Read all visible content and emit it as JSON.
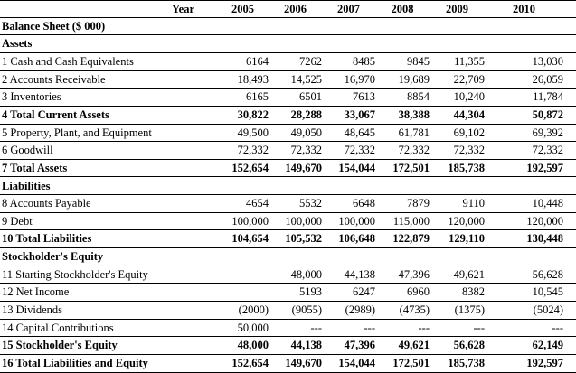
{
  "header": {
    "year_label": "Year",
    "years": [
      "2005",
      "2006",
      "2007",
      "2008",
      "2009",
      "2010"
    ]
  },
  "rows": [
    {
      "label": "Balance Sheet ($ 000)",
      "type": "title",
      "values": [
        "",
        "",
        "",
        "",
        "",
        ""
      ]
    },
    {
      "label": "Assets",
      "type": "section",
      "values": [
        "",
        "",
        "",
        "",
        "",
        ""
      ]
    },
    {
      "label": "1  Cash and Cash Equivalents",
      "type": "item",
      "values": [
        "6164",
        "7262",
        "8485",
        "9845",
        "11,355",
        "13,030"
      ]
    },
    {
      "label": "2  Accounts Receivable",
      "type": "item",
      "values": [
        "18,493",
        "14,525",
        "16,970",
        "19,689",
        "22,709",
        "26,059"
      ]
    },
    {
      "label": "3  Inventories",
      "type": "item",
      "values": [
        "6165",
        "6501",
        "7613",
        "8854",
        "10,240",
        "11,784"
      ]
    },
    {
      "label": "4  Total Current Assets",
      "type": "total",
      "values": [
        "30,822",
        "28,288",
        "33,067",
        "38,388",
        "44,304",
        "50,872"
      ]
    },
    {
      "label": "5  Property, Plant, and Equipment",
      "type": "item",
      "values": [
        "49,500",
        "49,050",
        "48,645",
        "61,781",
        "69,102",
        "69,392"
      ]
    },
    {
      "label": "6  Goodwill",
      "type": "item",
      "values": [
        "72,332",
        "72,332",
        "72,332",
        "72,332",
        "72,332",
        "72,332"
      ]
    },
    {
      "label": "7  Total Assets",
      "type": "total",
      "values": [
        "152,654",
        "149,670",
        "154,044",
        "172,501",
        "185,738",
        "192,597"
      ]
    },
    {
      "label": "Liabilities",
      "type": "section",
      "values": [
        "",
        "",
        "",
        "",
        "",
        ""
      ]
    },
    {
      "label": "8  Accounts Payable",
      "type": "item",
      "values": [
        "4654",
        "5532",
        "6648",
        "7879",
        "9110",
        "10,448"
      ]
    },
    {
      "label": "9  Debt",
      "type": "item",
      "values": [
        "100,000",
        "100,000",
        "100,000",
        "115,000",
        "120,000",
        "120,000"
      ]
    },
    {
      "label": "10  Total Liabilities",
      "type": "total",
      "values": [
        "104,654",
        "105,532",
        "106,648",
        "122,879",
        "129,110",
        "130,448"
      ]
    },
    {
      "label": "Stockholder's Equity",
      "type": "section",
      "values": [
        "",
        "",
        "",
        "",
        "",
        ""
      ]
    },
    {
      "label": "11  Starting Stockholder's Equity",
      "type": "item",
      "values": [
        "",
        "48,000",
        "44,138",
        "47,396",
        "49,621",
        "56,628"
      ]
    },
    {
      "label": "12  Net Income",
      "type": "item",
      "values": [
        "",
        "5193",
        "6247",
        "6960",
        "8382",
        "10,545"
      ]
    },
    {
      "label": "13  Dividends",
      "type": "item",
      "values": [
        "(2000)",
        "(9055)",
        "(2989)",
        "(4735)",
        "(1375)",
        "(5024)"
      ]
    },
    {
      "label": "14  Capital Contributions",
      "type": "item",
      "values": [
        "50,000",
        "---",
        "---",
        "---",
        "---",
        "---"
      ]
    },
    {
      "label": "15  Stockholder's Equity",
      "type": "total",
      "values": [
        "48,000",
        "44,138",
        "47,396",
        "49,621",
        "56,628",
        "62,149"
      ]
    },
    {
      "label": "16  Total Liabilities and Equity",
      "type": "total",
      "values": [
        "152,654",
        "149,670",
        "154,044",
        "172,501",
        "185,738",
        "192,597"
      ]
    }
  ]
}
